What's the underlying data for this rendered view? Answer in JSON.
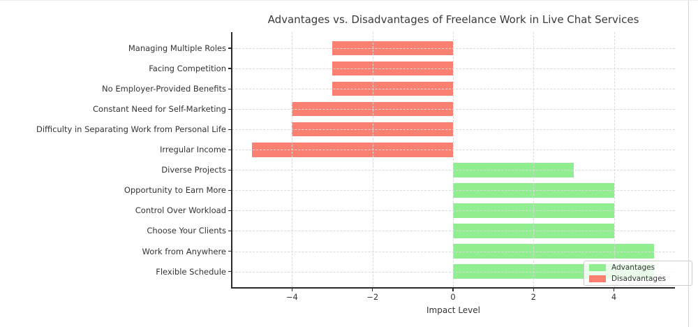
{
  "figure": {
    "title": "Advantages vs. Disadvantages of Freelance Work in Live Chat Services",
    "xlabel": "Impact Level"
  },
  "legend": {
    "position": "lower right",
    "items": [
      {
        "label": "Advantages",
        "color": "#90ee90"
      },
      {
        "label": "Disadvantages",
        "color": "#fa8072"
      }
    ]
  },
  "colors": {
    "advantage": "#90ee90",
    "disadvantage": "#fa8072",
    "grid": "#d9d9d9",
    "spine": "#2b2b2b",
    "text": "#333333",
    "title": "#3a3a3a"
  },
  "chart_data": {
    "type": "bar",
    "orientation": "horizontal",
    "title": "Advantages vs. Disadvantages of Freelance Work in Live Chat Services",
    "xlabel": "Impact Level",
    "ylabel": "",
    "categories": [
      "Managing Multiple Roles",
      "Facing Competition",
      "No Employer-Provided Benefits",
      "Constant Need for Self-Marketing",
      "Difficulty in Separating Work from Personal Life",
      "Irregular Income",
      "Diverse Projects",
      "Opportunity to Earn More",
      "Control Over Workload",
      "Choose Your Clients",
      "Work from Anywhere",
      "Flexible Schedule"
    ],
    "values": [
      -3,
      -3,
      -3,
      -4,
      -4,
      -5,
      3,
      4,
      4,
      4,
      5,
      5
    ],
    "series": [
      {
        "name": "Disadvantages",
        "color": "#fa8072",
        "categories": [
          "Managing Multiple Roles",
          "Facing Competition",
          "No Employer-Provided Benefits",
          "Constant Need for Self-Marketing",
          "Difficulty in Separating Work from Personal Life",
          "Irregular Income"
        ],
        "values": [
          -3,
          -3,
          -3,
          -4,
          -4,
          -5
        ]
      },
      {
        "name": "Advantages",
        "color": "#90ee90",
        "categories": [
          "Diverse Projects",
          "Opportunity to Earn More",
          "Control Over Workload",
          "Choose Your Clients",
          "Work from Anywhere",
          "Flexible Schedule"
        ],
        "values": [
          3,
          4,
          4,
          4,
          5,
          5
        ]
      }
    ],
    "xticks": [
      -4,
      -2,
      0,
      2,
      4
    ],
    "xtick_labels": [
      "−4",
      "−2",
      "0",
      "2",
      "4"
    ],
    "xlim": [
      -5.5,
      5.5
    ],
    "grid": true,
    "grid_style": "dashed",
    "legend_position": "lower right"
  }
}
